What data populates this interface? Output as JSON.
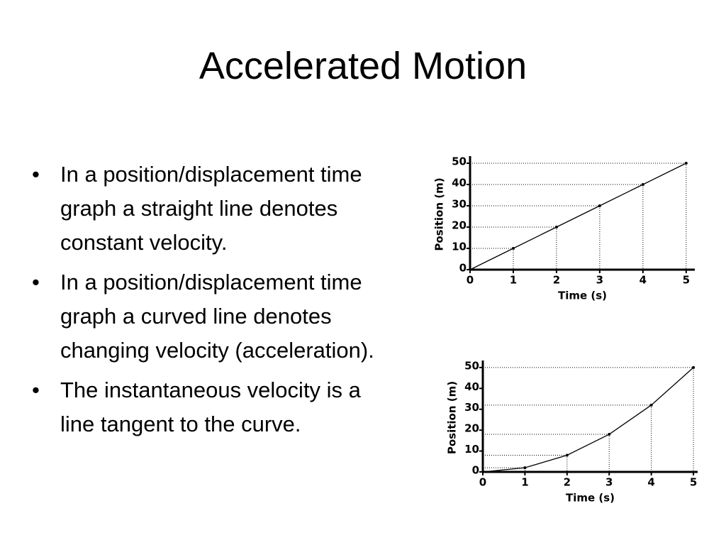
{
  "title": "Accelerated Motion",
  "bullets": [
    "In a position/displacement time graph a straight line denotes constant velocity.",
    "In a position/displacement time graph a curved line denotes changing velocity (acceleration).",
    "The instantaneous velocity is a line tangent to the curve."
  ],
  "chart_data": [
    {
      "type": "line",
      "x_label": "Time (s)",
      "y_label": "Position (m)",
      "x": [
        0,
        1,
        2,
        3,
        4,
        5
      ],
      "values": [
        0,
        10,
        20,
        30,
        40,
        50
      ],
      "color": "#000000",
      "xlim": [
        0,
        5.2
      ],
      "ylim": [
        0,
        52
      ],
      "xticks": [
        0,
        1,
        2,
        3,
        4,
        5
      ],
      "yticks": [
        0,
        10,
        20,
        30,
        40,
        50
      ]
    },
    {
      "type": "line",
      "x_label": "Time (s)",
      "y_label": "Position (m)",
      "x": [
        0,
        1,
        2,
        3,
        4,
        5
      ],
      "values": [
        0,
        2,
        8,
        18,
        32,
        50
      ],
      "color": "#000000",
      "xlim": [
        0,
        5.1
      ],
      "ylim": [
        0,
        52
      ],
      "xticks": [
        0,
        1,
        2,
        3,
        4,
        5
      ],
      "yticks": [
        0,
        10,
        20,
        30,
        40,
        50
      ]
    }
  ]
}
